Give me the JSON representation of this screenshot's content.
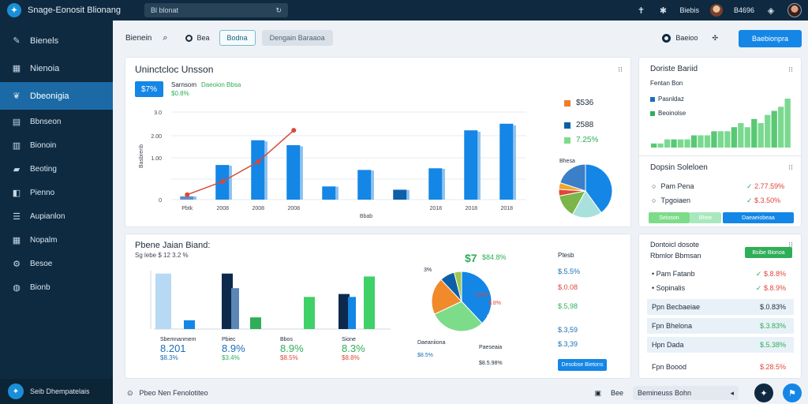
{
  "topbar": {
    "app_title": "Snage-Eonosit Blionang",
    "search_value": "Bl blonat",
    "user_name": "Biebis",
    "status_label": "B4696"
  },
  "sidebar": {
    "items": [
      {
        "label": "Bienels",
        "icon": "chat-icon"
      },
      {
        "label": "Nienoia",
        "icon": "grid-icon"
      },
      {
        "label": "Dbeonigia",
        "icon": "leaf-icon"
      },
      {
        "label": "Bbnseon",
        "icon": "book-icon"
      },
      {
        "label": "Bionoin",
        "icon": "chart-icon"
      },
      {
        "label": "Beoting",
        "icon": "folder-icon"
      },
      {
        "label": "Pienno",
        "icon": "tools-icon"
      },
      {
        "label": "Aupianlon",
        "icon": "list-icon"
      },
      {
        "label": "Nopalm",
        "icon": "table-icon"
      },
      {
        "label": "Besoe",
        "icon": "settings-icon"
      },
      {
        "label": "Bionb",
        "icon": "globe-icon"
      }
    ],
    "footer_label": "Seib Dhempatelais"
  },
  "toolbar": {
    "label": "Bienein",
    "radio_label": "Bea",
    "btn_outline": "Bodna",
    "btn_gray": "Dengain Baraaoa",
    "right_label": "Baeioo",
    "primary_button": "Baebionpra"
  },
  "panel1": {
    "title": "Uninctcloc Unsson",
    "badge": "$7%",
    "subtitle_a": "Sarnsom",
    "subtitle_b": "Daeoion Bbsa",
    "subvalue": "$0.8%",
    "legend": [
      {
        "label": "$536",
        "color": "#f07d2a"
      },
      {
        "label": "2588",
        "color": "#0d5fa8"
      },
      {
        "label": "7.25%",
        "color": "#7ddc8a"
      }
    ],
    "pie_label": "Bhesa"
  },
  "panel2": {
    "title": "Pbene Jaian Biand:",
    "subtitle": "Sg lebe $ 12 3.2 %",
    "values": [
      {
        "label": "Sbemnanmem",
        "value": "8.201",
        "pct": "$8.3%"
      },
      {
        "label": "Pbiec",
        "value": "8.9%",
        "pct": "$3.4%"
      },
      {
        "label": "Bbos",
        "value": "8.9%",
        "pct": "$8.5%"
      },
      {
        "label": "Sione",
        "value": "8.3%",
        "pct": "$8.8%"
      }
    ],
    "pie_top_pct": "$7",
    "pie_top_num": "$84.8%",
    "pie_inner_pct": "3%",
    "pie_center_pct": "$3.3%",
    "pie_small": "$.9%",
    "pie_small2": "$.8%",
    "pie_left_label": "Daeaniiona",
    "pie_left_value": "$8.5%",
    "pie_right_label": "Paeseaia",
    "pie_right_value": "$8.5.98%",
    "side_title": "Ptesb",
    "side_values": [
      "$.5.5%",
      "$.0.08",
      "$.5,98",
      "$.3,59",
      "$.3,39"
    ],
    "side_button": "Desobse Bietons"
  },
  "panel3": {
    "title": "Doriste Bariid",
    "subtitle": "Fentan Bon",
    "legend": [
      {
        "label": "Pasnldaz",
        "color": "#1a6fb8"
      },
      {
        "label": "Beoinolse",
        "color": "#2fae58"
      }
    ],
    "section_title": "Dopsin Soleloen",
    "rows": [
      {
        "label": "Pam Pena",
        "value": "2.77.59%",
        "color": "#e0463a"
      },
      {
        "label": "Tpgoiaen",
        "value": "$.3.50%",
        "color": "#e0463a"
      }
    ],
    "pill_a": "Seioson",
    "pill_b": "Bhee",
    "pill_c": "Daeaeiobeaa"
  },
  "panel4": {
    "title": "Dontoicl dosote",
    "subtitle": "Rbmlor Bbmsan",
    "button": "Bsibe Bionoa",
    "rows": [
      {
        "label": "Pam Fatanb",
        "value": "$.8.8%",
        "color": "#e0463a"
      },
      {
        "label": "Sopinalis",
        "value": "$.8.9%",
        "color": "#e0463a"
      },
      {
        "label": "Ppn Becbaeiae",
        "value": "$.0.83%",
        "color": "#1d2b3a"
      },
      {
        "label": "Fpn Bhelona",
        "value": "$.3.83%",
        "color": "#2fae58"
      },
      {
        "label": "Hpn Dada",
        "value": "$.5.38%",
        "color": "#2fae58"
      },
      {
        "label": "Fpn Boood",
        "value": "$.28.5%",
        "color": "#e0463a"
      }
    ]
  },
  "bottombar": {
    "left_text": "Pbeo Nen Fenolotiteo",
    "right_label": "Bee",
    "input_value": "Bemineuss Bohn"
  },
  "chart_data": [
    {
      "type": "bar",
      "panel": "panel1",
      "categories": [
        "Pbtk",
        "2008",
        "2008",
        "2008",
        "",
        "",
        "",
        "2018",
        "2018",
        "2018"
      ],
      "series": [
        {
          "values": [
            0.2,
            2.1,
            3.6,
            3.3,
            0.8,
            1.8,
            0.6,
            1.9,
            4.2,
            4.6
          ]
        }
      ],
      "y_ticks": [
        "3.0",
        "2.00",
        "1.00",
        "0"
      ],
      "x_axis_label": "Bbab",
      "ylabel": "Basbrenb",
      "ylim": [
        0,
        5.5
      ]
    },
    {
      "type": "line",
      "panel": "panel1",
      "x": [
        0,
        1,
        2,
        3
      ],
      "y": [
        0.3,
        1.1,
        2.3,
        4.2
      ]
    },
    {
      "type": "pie",
      "panel": "panel1",
      "slices": [
        {
          "value": 40,
          "color": "#1486e6"
        },
        {
          "value": 18,
          "color": "#a8e0dc"
        },
        {
          "value": 14,
          "color": "#7ab648"
        },
        {
          "value": 4,
          "color": "#e0463a"
        },
        {
          "value": 4,
          "color": "#f0a62a"
        },
        {
          "value": 20,
          "color": "#3b7fc9"
        }
      ]
    },
    {
      "type": "bar",
      "panel": "panel2",
      "series": [
        {
          "values": [
            1.2,
            0.3,
            1.9,
            0.4,
            1.1,
            1.2,
            1.8
          ]
        },
        {
          "values": [
            1.9,
            1.9,
            1.4,
            0.0,
            1.1,
            1.1,
            1.9
          ]
        }
      ]
    },
    {
      "type": "pie",
      "panel": "panel2",
      "slices": [
        {
          "value": 38,
          "color": "#1486e6"
        },
        {
          "value": 30,
          "color": "#7ddc8a"
        },
        {
          "value": 20,
          "color": "#f08a2a"
        },
        {
          "value": 8,
          "color": "#0d5fa8"
        },
        {
          "value": 4,
          "color": "#9fc84a"
        }
      ]
    },
    {
      "type": "bar",
      "panel": "panel3",
      "values": [
        1,
        1,
        2,
        2,
        2,
        2,
        3,
        3,
        3,
        4,
        4,
        4,
        5,
        6,
        5,
        7,
        6,
        8,
        9,
        10,
        12
      ]
    }
  ]
}
